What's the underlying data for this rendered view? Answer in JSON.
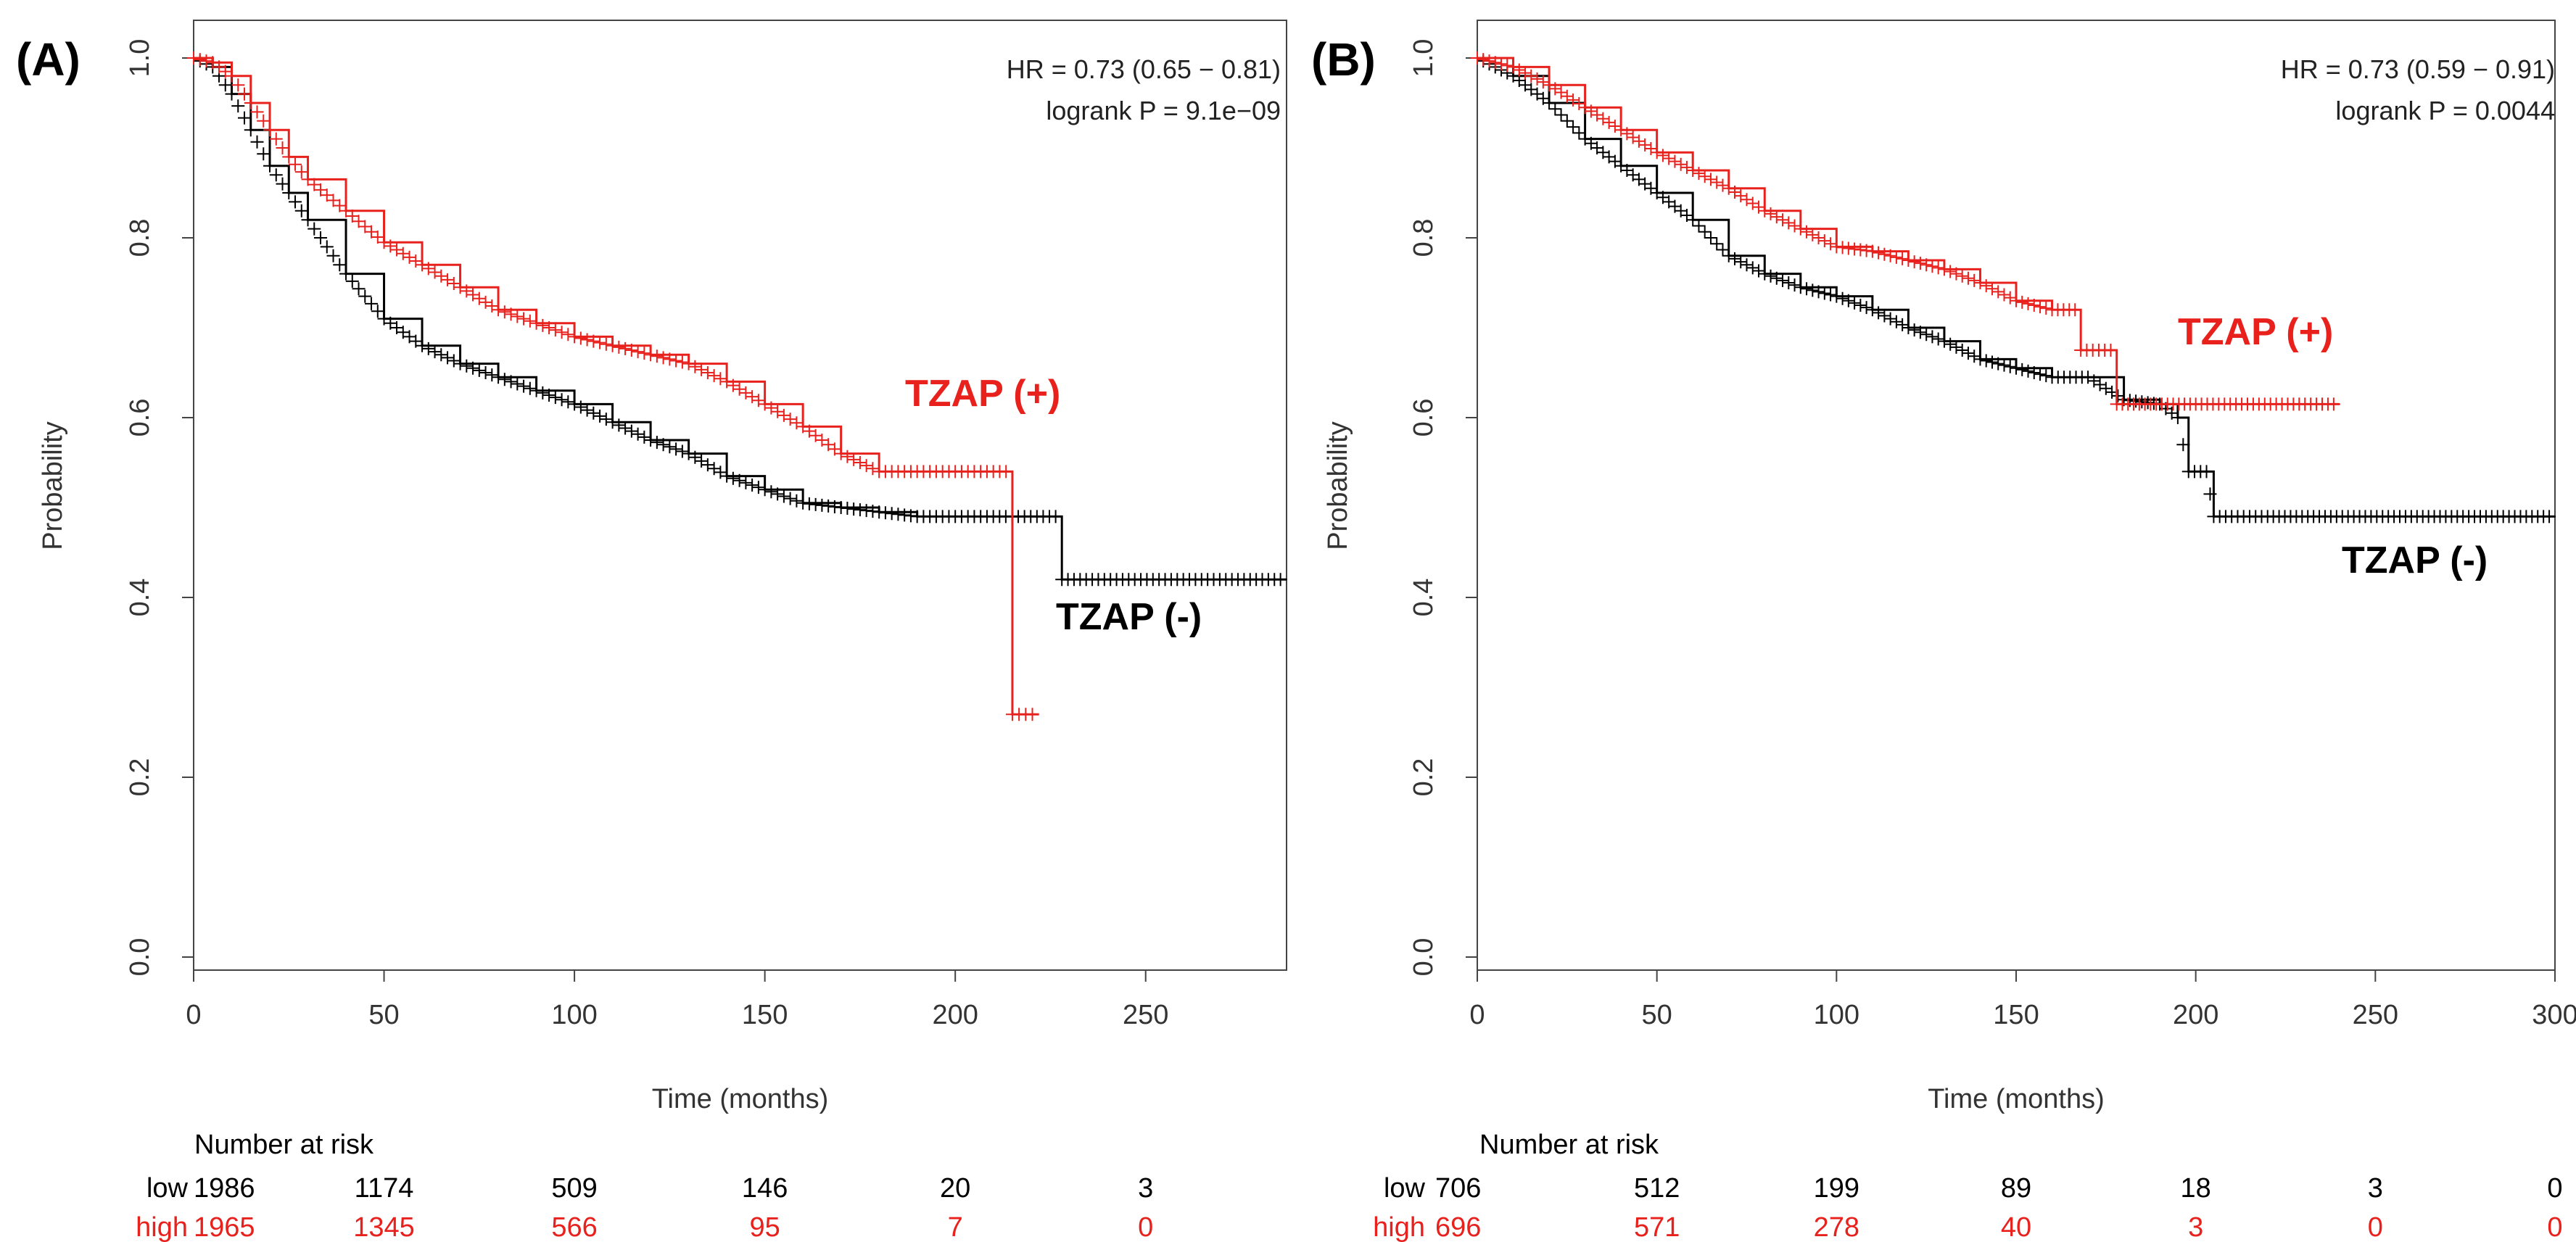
{
  "chart_data": [
    {
      "type": "line",
      "panel_label": "(A)",
      "xlabel": "Time (months)",
      "ylabel": "Probability",
      "xlim": [
        0,
        287
      ],
      "ylim": [
        0,
        1.0
      ],
      "x_ticks": [
        0,
        50,
        100,
        150,
        200,
        250
      ],
      "y_ticks": [
        "0.0",
        "0.2",
        "0.4",
        "0.6",
        "0.8",
        "1.0"
      ],
      "stats": {
        "hr": "HR = 0.73 (0.65 − 0.81)",
        "p": "logrank P = 9.1e−09"
      },
      "series": [
        {
          "name": "TZAP (-)",
          "color": "#000000",
          "points": [
            [
              0,
              1.0
            ],
            [
              5,
              0.99
            ],
            [
              10,
              0.96
            ],
            [
              15,
              0.92
            ],
            [
              20,
              0.88
            ],
            [
              25,
              0.85
            ],
            [
              30,
              0.82
            ],
            [
              40,
              0.76
            ],
            [
              50,
              0.71
            ],
            [
              60,
              0.68
            ],
            [
              70,
              0.66
            ],
            [
              80,
              0.645
            ],
            [
              90,
              0.63
            ],
            [
              100,
              0.615
            ],
            [
              110,
              0.595
            ],
            [
              120,
              0.575
            ],
            [
              130,
              0.56
            ],
            [
              140,
              0.535
            ],
            [
              150,
              0.52
            ],
            [
              160,
              0.505
            ],
            [
              170,
              0.5
            ],
            [
              180,
              0.495
            ],
            [
              190,
              0.49
            ],
            [
              200,
              0.49
            ],
            [
              210,
              0.49
            ],
            [
              228,
              0.49
            ],
            [
              228,
              0.42
            ],
            [
              287,
              0.42
            ]
          ]
        },
        {
          "name": "TZAP (+)",
          "color": "#e8211d",
          "points": [
            [
              0,
              1.0
            ],
            [
              5,
              0.995
            ],
            [
              10,
              0.98
            ],
            [
              15,
              0.95
            ],
            [
              20,
              0.92
            ],
            [
              25,
              0.89
            ],
            [
              30,
              0.865
            ],
            [
              40,
              0.83
            ],
            [
              50,
              0.795
            ],
            [
              60,
              0.77
            ],
            [
              70,
              0.745
            ],
            [
              80,
              0.72
            ],
            [
              90,
              0.705
            ],
            [
              100,
              0.69
            ],
            [
              110,
              0.68
            ],
            [
              120,
              0.67
            ],
            [
              130,
              0.66
            ],
            [
              140,
              0.64
            ],
            [
              150,
              0.615
            ],
            [
              160,
              0.59
            ],
            [
              170,
              0.56
            ],
            [
              180,
              0.54
            ],
            [
              190,
              0.54
            ],
            [
              200,
              0.54
            ],
            [
              210,
              0.54
            ],
            [
              215,
              0.54
            ],
            [
              215,
              0.27
            ],
            [
              222,
              0.27
            ]
          ]
        }
      ],
      "annotations": [
        "TZAP (+)",
        "TZAP (-)"
      ],
      "risk_table": {
        "title": "Number at risk",
        "rows": [
          {
            "label": "low",
            "values": [
              "1986",
              "1174",
              "509",
              "146",
              "20",
              "3"
            ],
            "color": "#000000"
          },
          {
            "label": "high",
            "values": [
              "1965",
              "1345",
              "566",
              "95",
              "7",
              "0"
            ],
            "color": "#e8211d"
          }
        ]
      }
    },
    {
      "type": "line",
      "panel_label": "(B)",
      "xlabel": "Time (months)",
      "ylabel": "Probability",
      "xlim": [
        0,
        300
      ],
      "ylim": [
        0,
        1.0
      ],
      "x_ticks": [
        0,
        50,
        100,
        150,
        200,
        250,
        300
      ],
      "y_ticks": [
        "0.0",
        "0.2",
        "0.4",
        "0.6",
        "0.8",
        "1.0"
      ],
      "stats": {
        "hr": "HR = 0.73 (0.59 − 0.91)",
        "p": "logrank P = 0.0044"
      },
      "series": [
        {
          "name": "TZAP (-)",
          "color": "#000000",
          "points": [
            [
              0,
              1.0
            ],
            [
              10,
              0.98
            ],
            [
              20,
              0.95
            ],
            [
              30,
              0.91
            ],
            [
              40,
              0.88
            ],
            [
              50,
              0.85
            ],
            [
              60,
              0.82
            ],
            [
              70,
              0.78
            ],
            [
              80,
              0.76
            ],
            [
              90,
              0.745
            ],
            [
              100,
              0.735
            ],
            [
              110,
              0.72
            ],
            [
              120,
              0.7
            ],
            [
              130,
              0.685
            ],
            [
              140,
              0.665
            ],
            [
              150,
              0.655
            ],
            [
              160,
              0.645
            ],
            [
              170,
              0.645
            ],
            [
              180,
              0.62
            ],
            [
              190,
              0.615
            ],
            [
              195,
              0.6
            ],
            [
              198,
              0.54
            ],
            [
              203,
              0.54
            ],
            [
              205,
              0.49
            ],
            [
              220,
              0.49
            ],
            [
              300,
              0.49
            ]
          ]
        },
        {
          "name": "TZAP (+)",
          "color": "#e8211d",
          "points": [
            [
              0,
              1.0
            ],
            [
              10,
              0.99
            ],
            [
              20,
              0.97
            ],
            [
              30,
              0.945
            ],
            [
              40,
              0.92
            ],
            [
              50,
              0.895
            ],
            [
              60,
              0.875
            ],
            [
              70,
              0.855
            ],
            [
              80,
              0.83
            ],
            [
              90,
              0.81
            ],
            [
              100,
              0.79
            ],
            [
              110,
              0.785
            ],
            [
              120,
              0.775
            ],
            [
              130,
              0.765
            ],
            [
              140,
              0.75
            ],
            [
              150,
              0.73
            ],
            [
              160,
              0.72
            ],
            [
              168,
              0.72
            ],
            [
              168,
              0.675
            ],
            [
              178,
              0.675
            ],
            [
              178,
              0.615
            ],
            [
              200,
              0.615
            ],
            [
              240,
              0.615
            ]
          ]
        }
      ],
      "annotations": [
        "TZAP (+)",
        "TZAP (-)"
      ],
      "risk_table": {
        "title": "Number at risk",
        "rows": [
          {
            "label": "low",
            "values": [
              "706",
              "512",
              "199",
              "89",
              "18",
              "3",
              "0"
            ],
            "color": "#000000"
          },
          {
            "label": "high",
            "values": [
              "696",
              "571",
              "278",
              "40",
              "3",
              "0",
              "0"
            ],
            "color": "#e8211d"
          }
        ]
      }
    }
  ]
}
